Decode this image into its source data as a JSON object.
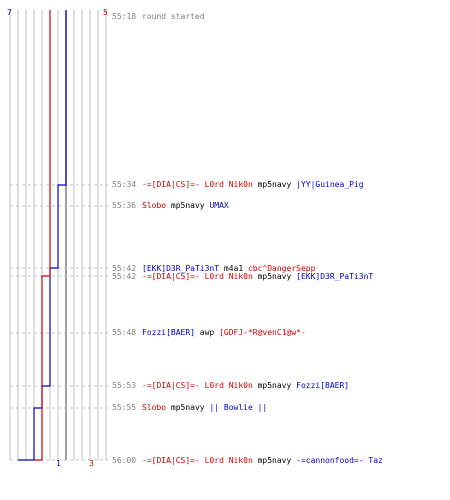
{
  "chart_data": {
    "type": "line",
    "start_label_blue": "7",
    "start_label_red": "5",
    "end_label_blue": "1",
    "end_label_red": "3",
    "colors": {
      "blue": "#0000cc",
      "red": "#cc0000",
      "grid": "#c0c0c0",
      "grid_dark": "#808080",
      "dash": "#c0c0c0",
      "time": "#808080",
      "text_black": "#000000",
      "text_gray": "#808080"
    },
    "series": [
      {
        "team": "blue",
        "values": [
          7,
          6,
          6,
          5,
          5,
          5,
          4,
          3,
          1
        ]
      },
      {
        "team": "red",
        "values": [
          5,
          5,
          5,
          5,
          4,
          4,
          4,
          4,
          3
        ]
      }
    ],
    "events": [
      {
        "time": "55:18",
        "parts": [
          {
            "t": "round started",
            "c": "gray"
          }
        ]
      },
      {
        "time": "55:34",
        "parts": [
          {
            "t": "-=[DIA|CS]=- L0rd Nik0n",
            "c": "red"
          },
          {
            "t": " mp5navy ",
            "c": "black"
          },
          {
            "t": "|YY|Guinea_Pig",
            "c": "blue"
          }
        ]
      },
      {
        "time": "55:36",
        "parts": [
          {
            "t": "Slobo",
            "c": "red"
          },
          {
            "t": " mp5navy ",
            "c": "black"
          },
          {
            "t": "UMAX",
            "c": "blue"
          }
        ]
      },
      {
        "time": "55:42",
        "parts": [
          {
            "t": "[EKK]D3R_PaTi3nT",
            "c": "blue"
          },
          {
            "t": " m4a1 ",
            "c": "black"
          },
          {
            "t": "cbc^DangerSepp",
            "c": "red"
          }
        ]
      },
      {
        "time": "55:42",
        "parts": [
          {
            "t": "-=[DIA|CS]=- L0rd Nik0n",
            "c": "red"
          },
          {
            "t": " mp5navy ",
            "c": "black"
          },
          {
            "t": "[EKK]D3R_PaTi3nT",
            "c": "blue"
          }
        ]
      },
      {
        "time": "55:48",
        "parts": [
          {
            "t": "Fozzi[BAER]",
            "c": "blue"
          },
          {
            "t": " awp ",
            "c": "black"
          },
          {
            "t": "[GDFJ-*R@venC1@w*-",
            "c": "red"
          }
        ]
      },
      {
        "time": "55:53",
        "parts": [
          {
            "t": "-=[DIA|CS]=- L0rd Nik0n",
            "c": "red"
          },
          {
            "t": " mp5navy ",
            "c": "black"
          },
          {
            "t": "Fozzi[BAER]",
            "c": "blue"
          }
        ]
      },
      {
        "time": "55:55",
        "parts": [
          {
            "t": "Slobo",
            "c": "red"
          },
          {
            "t": " mp5navy ",
            "c": "black"
          },
          {
            "t": "|| Bowlie ||",
            "c": "blue"
          }
        ]
      },
      {
        "time": "56:00",
        "parts": [
          {
            "t": "-=[DIA|CS]=- L0rd Nik0n",
            "c": "red"
          },
          {
            "t": " mp5navy ",
            "c": "black"
          },
          {
            "t": "-=cannonfood=- Taz",
            "c": "blue"
          }
        ]
      }
    ]
  }
}
